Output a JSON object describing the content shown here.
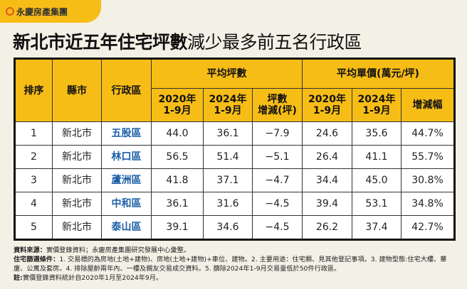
{
  "logo": {
    "text": "永慶房產集團"
  },
  "title": {
    "bold": "新北市近五年住宅坪數",
    "normal": "減少最多前五名行政區"
  },
  "table": {
    "headers": {
      "rank": "排序",
      "city": "縣市",
      "district": "行政區",
      "group1": "平均坪數",
      "group2": "平均單價(萬元/坪)",
      "sub": [
        "2020年\n1-9月",
        "2024年\n1-9月",
        "坪數\n增減(坪)",
        "2020年\n1-9月",
        "2024年\n1-9月",
        "增減幅"
      ]
    },
    "rows": [
      [
        "1",
        "新北市",
        "五股區",
        "44.0",
        "36.1",
        "−7.9",
        "24.6",
        "35.6",
        "44.7%"
      ],
      [
        "2",
        "新北市",
        "林口區",
        "56.5",
        "51.4",
        "−5.1",
        "26.4",
        "41.1",
        "55.7%"
      ],
      [
        "3",
        "新北市",
        "蘆洲區",
        "41.8",
        "37.1",
        "−4.7",
        "34.4",
        "45.0",
        "30.8%"
      ],
      [
        "4",
        "新北市",
        "中和區",
        "36.1",
        "31.6",
        "−4.5",
        "39.4",
        "53.1",
        "34.8%"
      ],
      [
        "5",
        "新北市",
        "泰山區",
        "39.1",
        "34.6",
        "−4.5",
        "26.2",
        "37.4",
        "42.7%"
      ]
    ]
  },
  "notes": [
    {
      "label": "資料來源：",
      "text": "實價登錄資料；永慶房產集團研究發展中心彙整。"
    },
    {
      "label": "住宅篩選條件：",
      "text": "1. 交易標的為房地(土地+建物)、房地(土地+建物)+車位、建物。2. 主要用途：住宅類、見其他登記事項。3. 建物型態:住宅大樓、華廈、公寓及套房。4. 排除屋齡兩年內、一樓及親友交易成交資料。5. 篩除2024年1-9月交易量低於50件行政區。"
    },
    {
      "label": "註:",
      "text": "實價登錄資料統計自2020年1月至2024年9月。"
    }
  ]
}
